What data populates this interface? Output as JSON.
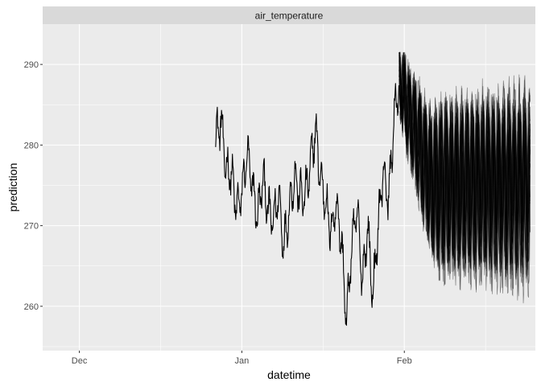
{
  "chart_data": {
    "type": "line",
    "facet_label": "air_temperature",
    "xlabel": "datetime",
    "ylabel": "prediction",
    "x_ticks": [
      {
        "date": "2023-12-01",
        "label": "Dec"
      },
      {
        "date": "2024-01-01",
        "label": "Jan"
      },
      {
        "date": "2024-02-01",
        "label": "Feb"
      }
    ],
    "x_range": [
      "2023-11-24",
      "2024-02-26"
    ],
    "y_ticks": [
      260,
      270,
      280,
      290
    ],
    "ylim": [
      254.5,
      295
    ],
    "grid": true,
    "background": "#ebebeb",
    "strip_color": "#d9d9d9",
    "observed_series": {
      "color": "#000000",
      "points": [
        [
          "2023-12-27",
          281
        ],
        [
          "2023-12-28",
          283
        ],
        [
          "2023-12-29",
          277
        ],
        [
          "2023-12-30",
          276.5
        ],
        [
          "2023-12-31",
          272
        ],
        [
          "2024-01-01",
          274
        ],
        [
          "2024-01-02",
          279
        ],
        [
          "2024-01-03",
          275
        ],
        [
          "2024-01-04",
          271
        ],
        [
          "2024-01-05",
          276
        ],
        [
          "2024-01-06",
          272
        ],
        [
          "2024-01-07",
          270.5
        ],
        [
          "2024-01-08",
          274
        ],
        [
          "2024-01-09",
          267.5
        ],
        [
          "2024-01-10",
          272
        ],
        [
          "2024-01-11",
          276
        ],
        [
          "2024-01-12",
          274
        ],
        [
          "2024-01-13",
          273.5
        ],
        [
          "2024-01-14",
          277
        ],
        [
          "2024-01-15",
          282
        ],
        [
          "2024-01-16",
          276
        ],
        [
          "2024-01-17",
          273
        ],
        [
          "2024-01-18",
          269
        ],
        [
          "2024-01-19",
          273
        ],
        [
          "2024-01-20",
          268
        ],
        [
          "2024-01-21",
          258
        ],
        [
          "2024-01-22",
          268
        ],
        [
          "2024-01-23",
          272
        ],
        [
          "2024-01-24",
          263
        ],
        [
          "2024-01-25",
          270
        ],
        [
          "2024-01-26",
          261
        ],
        [
          "2024-01-27",
          270
        ],
        [
          "2024-01-28",
          277
        ],
        [
          "2024-01-29",
          273
        ],
        [
          "2024-01-30",
          283
        ],
        [
          "2024-01-31",
          288
        ]
      ]
    },
    "forecast_ensemble": {
      "color": "#000000",
      "members": 30,
      "start": "2024-01-31",
      "end": "2024-02-25",
      "central_band": [
        270,
        280
      ],
      "overall_range": [
        257,
        291.5
      ]
    }
  }
}
